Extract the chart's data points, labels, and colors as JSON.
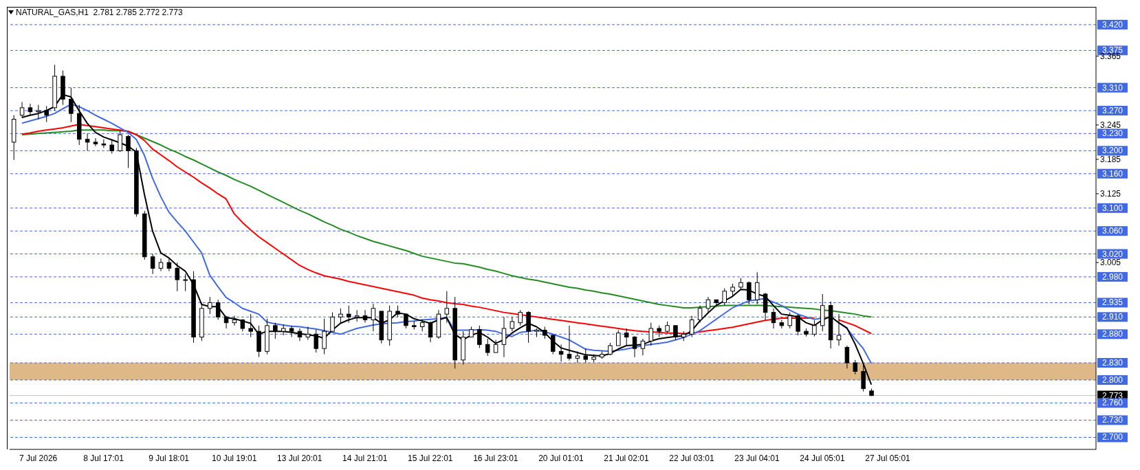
{
  "chart_data": {
    "type": "candlestick",
    "title": "NATURAL_GAS,H1  2.781 2.785 2.772 2.773",
    "categories": [
      null,
      null,
      null,
      "7 Jul 2026",
      null,
      null,
      null,
      null,
      null,
      null,
      null,
      "8 Jul 17:01",
      null,
      null,
      null,
      null,
      null,
      null,
      null,
      "9 Jul 18:01",
      null,
      null,
      null,
      null,
      null,
      null,
      null,
      "10 Jul 19:01",
      null,
      null,
      null,
      null,
      null,
      null,
      null,
      "13 Jul 20:01",
      null,
      null,
      null,
      null,
      null,
      null,
      null,
      "14 Jul 21:01",
      null,
      null,
      null,
      null,
      null,
      null,
      null,
      "15 Jul 22:01",
      null,
      null,
      null,
      null,
      null,
      null,
      null,
      "16 Jul 23:01",
      null,
      null,
      null,
      null,
      null,
      null,
      null,
      "20 Jul 01:01",
      null,
      null,
      null,
      null,
      null,
      null,
      null,
      "21 Jul 02:01",
      null,
      null,
      null,
      null,
      null,
      null,
      null,
      "22 Jul 03:01",
      null,
      null,
      null,
      null,
      null,
      null,
      null,
      "23 Jul 04:01",
      null,
      null,
      null,
      null,
      null,
      null,
      null,
      "24 Jul 05:01",
      null,
      null,
      null,
      null,
      null,
      null,
      null,
      "27 Jul 05:01",
      null,
      null,
      null,
      null,
      null,
      null,
      null,
      null,
      null,
      null,
      null,
      null,
      null,
      null,
      null,
      null,
      null,
      null,
      null,
      null,
      null,
      null,
      null,
      null,
      null
    ],
    "ohlc": [
      [
        3.215,
        3.262,
        3.184,
        3.255
      ],
      [
        3.262,
        3.285,
        3.258,
        3.275
      ],
      [
        3.275,
        3.282,
        3.262,
        3.268
      ],
      [
        3.268,
        3.28,
        3.255,
        3.27
      ],
      [
        3.27,
        3.278,
        3.25,
        3.262
      ],
      [
        3.275,
        3.35,
        3.27,
        3.33
      ],
      [
        3.33,
        3.34,
        3.28,
        3.29
      ],
      [
        3.29,
        3.31,
        3.25,
        3.265
      ],
      [
        3.265,
        3.28,
        3.21,
        3.22
      ],
      [
        3.22,
        3.23,
        3.2,
        3.215
      ],
      [
        3.215,
        3.222,
        3.208,
        3.212
      ],
      [
        3.212,
        3.22,
        3.205,
        3.21
      ],
      [
        3.21,
        3.22,
        3.195,
        3.2
      ],
      [
        3.2,
        3.235,
        3.198,
        3.228
      ],
      [
        3.225,
        3.228,
        3.17,
        3.2
      ],
      [
        3.2,
        3.205,
        3.085,
        3.09
      ],
      [
        3.09,
        3.095,
        3.01,
        3.015
      ],
      [
        3.015,
        3.02,
        2.985,
        2.995
      ],
      [
        2.995,
        3.012,
        2.99,
        3.005
      ],
      [
        3.005,
        3.012,
        2.99,
        2.995
      ],
      [
        2.995,
        3.005,
        2.955,
        2.975
      ],
      [
        2.975,
        2.985,
        2.955,
        2.975
      ],
      [
        2.975,
        2.99,
        2.865,
        2.875
      ],
      [
        2.875,
        2.935,
        2.868,
        2.925
      ],
      [
        2.925,
        2.945,
        2.915,
        2.935
      ],
      [
        2.935,
        2.94,
        2.905,
        2.91
      ],
      [
        2.91,
        2.912,
        2.89,
        2.9
      ],
      [
        2.9,
        2.912,
        2.895,
        2.905
      ],
      [
        2.905,
        2.906,
        2.885,
        2.89
      ],
      [
        2.89,
        2.915,
        2.875,
        2.885
      ],
      [
        2.885,
        2.895,
        2.84,
        2.85
      ],
      [
        2.85,
        2.907,
        2.845,
        2.895
      ],
      [
        2.895,
        2.9,
        2.872,
        2.885
      ],
      [
        2.885,
        2.897,
        2.878,
        2.89
      ],
      [
        2.89,
        2.895,
        2.875,
        2.885
      ],
      [
        2.885,
        2.89,
        2.868,
        2.875
      ],
      [
        2.875,
        2.893,
        2.87,
        2.88
      ],
      [
        2.88,
        2.888,
        2.848,
        2.855
      ],
      [
        2.855,
        2.907,
        2.845,
        2.885
      ],
      [
        2.885,
        2.918,
        2.885,
        2.91
      ],
      [
        2.91,
        2.925,
        2.9,
        2.915
      ],
      [
        2.915,
        2.93,
        2.9,
        2.91
      ],
      [
        2.91,
        2.922,
        2.902,
        2.912
      ],
      [
        2.912,
        2.922,
        2.9,
        2.905
      ],
      [
        2.905,
        2.933,
        2.885,
        2.925
      ],
      [
        2.92,
        2.92,
        2.864,
        2.87
      ],
      [
        2.87,
        2.93,
        2.86,
        2.92
      ],
      [
        2.92,
        2.93,
        2.91,
        2.915
      ],
      [
        2.915,
        2.915,
        2.89,
        2.895
      ],
      [
        2.895,
        2.903,
        2.888,
        2.893
      ],
      [
        2.893,
        2.906,
        2.885,
        2.9
      ],
      [
        2.9,
        2.902,
        2.866,
        2.875
      ],
      [
        2.875,
        2.922,
        2.872,
        2.915
      ],
      [
        2.915,
        2.955,
        2.9,
        2.925
      ],
      [
        2.925,
        2.945,
        2.82,
        2.835
      ],
      [
        2.835,
        2.885,
        2.827,
        2.875
      ],
      [
        2.875,
        2.893,
        2.875,
        2.888
      ],
      [
        2.888,
        2.895,
        2.856,
        2.862
      ],
      [
        2.862,
        2.872,
        2.842,
        2.848
      ],
      [
        2.848,
        2.87,
        2.848,
        2.862
      ],
      [
        2.862,
        2.91,
        2.84,
        2.89
      ],
      [
        2.89,
        2.91,
        2.885,
        2.902
      ],
      [
        2.9,
        2.922,
        2.895,
        2.918
      ],
      [
        2.918,
        2.92,
        2.865,
        2.885
      ],
      [
        2.885,
        2.89,
        2.875,
        2.887
      ],
      [
        2.887,
        2.893,
        2.872,
        2.878
      ],
      [
        2.878,
        2.88,
        2.845,
        2.85
      ],
      [
        2.85,
        2.862,
        2.832,
        2.845
      ],
      [
        2.845,
        2.895,
        2.834,
        2.838
      ],
      [
        2.838,
        2.85,
        2.83,
        2.842
      ],
      [
        2.842,
        2.855,
        2.83,
        2.836
      ],
      [
        2.836,
        2.845,
        2.831,
        2.84
      ],
      [
        2.84,
        2.85,
        2.837,
        2.845
      ],
      [
        2.845,
        2.865,
        2.843,
        2.86
      ],
      [
        2.86,
        2.887,
        2.86,
        2.882
      ],
      [
        2.882,
        2.89,
        2.86,
        2.875
      ],
      [
        2.875,
        2.877,
        2.84,
        2.855
      ],
      [
        2.855,
        2.872,
        2.843,
        2.868
      ],
      [
        2.868,
        2.9,
        2.86,
        2.89
      ],
      [
        2.89,
        2.895,
        2.875,
        2.885
      ],
      [
        2.885,
        2.902,
        2.882,
        2.895
      ],
      [
        2.895,
        2.895,
        2.87,
        2.875
      ],
      [
        2.875,
        2.885,
        2.868,
        2.88
      ],
      [
        2.88,
        2.912,
        2.875,
        2.905
      ],
      [
        2.905,
        2.93,
        2.9,
        2.925
      ],
      [
        2.925,
        2.945,
        2.918,
        2.94
      ],
      [
        2.94,
        2.94,
        2.928,
        2.935
      ],
      [
        2.935,
        2.96,
        2.93,
        2.955
      ],
      [
        2.955,
        2.968,
        2.945,
        2.962
      ],
      [
        2.962,
        2.978,
        2.957,
        2.97
      ],
      [
        2.97,
        2.972,
        2.932,
        2.94
      ],
      [
        2.94,
        2.988,
        2.932,
        2.97
      ],
      [
        2.95,
        2.952,
        2.905,
        2.918
      ],
      [
        2.918,
        2.925,
        2.89,
        2.9
      ],
      [
        2.9,
        2.905,
        2.89,
        2.895
      ],
      [
        2.895,
        2.918,
        2.89,
        2.912
      ],
      [
        2.912,
        2.915,
        2.878,
        2.885
      ],
      [
        2.885,
        2.89,
        2.876,
        2.88
      ],
      [
        2.88,
        2.904,
        2.876,
        2.895
      ],
      [
        2.895,
        2.95,
        2.885,
        2.93
      ],
      [
        2.93,
        2.937,
        2.855,
        2.87
      ],
      [
        2.87,
        2.915,
        2.86,
        2.878
      ],
      [
        2.857,
        2.86,
        2.82,
        2.83
      ],
      [
        2.83,
        2.835,
        2.81,
        2.815
      ],
      [
        2.815,
        2.83,
        2.78,
        2.785
      ],
      [
        2.781,
        2.785,
        2.772,
        2.773
      ],
      null,
      null,
      null,
      null,
      null,
      null,
      null,
      null,
      null,
      null,
      null,
      null,
      null,
      null,
      null,
      null,
      null,
      null,
      null,
      null,
      null,
      null,
      null,
      null,
      null,
      null,
      null
    ],
    "series": [
      {
        "type": "line",
        "color": "#228b22",
        "values": [
          null,
          3.228,
          3.229,
          3.23,
          3.231,
          3.232,
          3.233,
          3.234,
          3.236,
          3.236,
          3.236,
          3.236,
          3.235,
          3.235,
          3.234,
          3.228,
          3.222,
          3.216,
          3.21,
          3.203,
          3.197,
          3.19,
          3.184,
          3.177,
          3.17,
          3.163,
          3.157,
          3.15,
          3.144,
          3.138,
          3.131,
          3.124,
          3.117,
          3.11,
          3.103,
          3.096,
          3.09,
          3.083,
          3.076,
          3.07,
          3.063,
          3.058,
          3.052,
          3.047,
          3.042,
          3.038,
          3.034,
          3.03,
          3.026,
          3.021,
          3.016,
          3.013,
          3.01,
          3.007,
          3.004,
          3.003,
          3.0,
          2.997,
          2.993,
          2.99,
          2.986,
          2.982,
          2.979,
          2.976,
          2.974,
          2.971,
          2.968,
          2.965,
          2.962,
          2.96,
          2.957,
          2.955,
          2.952,
          2.95,
          2.947,
          2.944,
          2.941,
          2.938,
          2.935,
          2.932,
          2.93,
          2.928,
          2.926,
          2.926,
          2.927,
          2.928,
          2.929,
          2.93,
          2.93,
          2.93,
          2.93,
          2.93,
          2.93,
          2.929,
          2.928,
          2.927,
          2.926,
          2.925,
          2.924,
          2.922,
          2.921,
          2.919,
          2.917,
          2.915,
          2.912,
          2.91,
          null,
          null,
          null,
          null,
          null,
          null,
          null,
          null,
          null,
          null,
          null,
          null,
          null,
          null,
          null,
          null,
          null,
          null,
          null,
          null,
          null,
          null,
          null,
          null,
          null,
          null,
          null
        ]
      },
      {
        "type": "line",
        "color": "#ff0000",
        "values": [
          null,
          3.229,
          3.231,
          3.234,
          3.236,
          3.238,
          3.24,
          3.243,
          3.246,
          3.244,
          3.242,
          3.24,
          3.238,
          3.236,
          3.234,
          3.228,
          3.218,
          3.203,
          3.193,
          3.183,
          3.172,
          3.163,
          3.154,
          3.144,
          3.135,
          3.125,
          3.116,
          3.09,
          3.075,
          3.062,
          3.05,
          3.04,
          3.03,
          3.02,
          3.01,
          3.0,
          2.993,
          2.987,
          2.982,
          2.979,
          2.976,
          2.972,
          2.969,
          2.966,
          2.963,
          2.96,
          2.957,
          2.954,
          2.951,
          2.948,
          2.943,
          2.94,
          2.938,
          2.935,
          2.933,
          2.932,
          2.929,
          2.927,
          2.924,
          2.921,
          2.918,
          2.916,
          2.914,
          2.912,
          2.91,
          2.908,
          2.906,
          2.904,
          2.902,
          2.9,
          2.898,
          2.896,
          2.894,
          2.892,
          2.89,
          2.888,
          2.886,
          2.885,
          2.884,
          2.883,
          2.882,
          2.882,
          2.881,
          2.882,
          2.884,
          2.886,
          2.888,
          2.89,
          2.892,
          2.895,
          2.898,
          2.901,
          2.904,
          2.906,
          2.908,
          2.908,
          2.908,
          2.908,
          2.908,
          null,
          null,
          2.905,
          2.9,
          2.895,
          2.888,
          2.881,
          null,
          null,
          null,
          null,
          null,
          null,
          null,
          null,
          null,
          null,
          null,
          null,
          null,
          null,
          null,
          null,
          null,
          null,
          null,
          null,
          null,
          null,
          null,
          null,
          null,
          null,
          null
        ]
      },
      {
        "type": "line",
        "color": "#4169e1",
        "values": [
          null,
          3.248,
          3.252,
          3.256,
          3.26,
          3.265,
          3.273,
          3.281,
          3.277,
          3.27,
          3.262,
          3.255,
          3.248,
          3.24,
          3.232,
          3.22,
          3.192,
          3.152,
          3.12,
          3.093,
          3.076,
          3.06,
          3.041,
          3.022,
          2.983,
          2.963,
          2.944,
          2.935,
          2.925,
          2.92,
          2.915,
          2.901,
          2.898,
          2.896,
          2.894,
          2.893,
          2.891,
          2.889,
          2.886,
          2.883,
          2.88,
          2.885,
          2.89,
          2.893,
          2.896,
          2.898,
          2.899,
          2.9,
          2.902,
          2.903,
          2.905,
          2.906,
          2.907,
          2.909,
          2.887,
          2.887,
          2.887,
          2.888,
          2.887,
          2.885,
          2.88,
          2.876,
          2.883,
          2.885,
          2.887,
          2.884,
          2.88,
          2.875,
          2.87,
          2.862,
          2.854,
          2.852,
          2.851,
          2.85,
          2.852,
          2.854,
          2.857,
          2.86,
          2.862,
          2.864,
          2.866,
          2.87,
          2.874,
          2.88,
          2.886,
          2.896,
          2.906,
          2.916,
          2.926,
          2.932,
          2.938,
          2.94,
          2.942,
          2.936,
          2.93,
          2.922,
          2.915,
          2.91,
          2.906,
          2.908,
          null,
          2.9,
          2.89,
          2.872,
          2.855,
          2.829,
          null,
          null,
          null,
          null,
          null,
          null,
          null,
          null,
          null,
          null,
          null,
          null,
          null,
          null,
          null,
          null,
          null,
          null,
          null,
          null,
          null,
          null,
          null,
          null,
          null,
          null,
          null
        ]
      },
      {
        "type": "line",
        "color": "#000000",
        "values": [
          null,
          3.258,
          3.262,
          3.265,
          3.27,
          3.277,
          3.298,
          3.294,
          3.27,
          3.248,
          3.232,
          3.224,
          3.219,
          3.214,
          3.208,
          3.198,
          3.124,
          3.06,
          3.022,
          3.013,
          3.0,
          2.99,
          2.967,
          2.932,
          2.928,
          2.928,
          2.909,
          2.907,
          2.903,
          2.899,
          2.88,
          2.885,
          2.885,
          2.885,
          2.883,
          2.881,
          2.879,
          2.877,
          2.873,
          2.887,
          2.899,
          2.905,
          2.909,
          2.909,
          2.909,
          2.899,
          2.905,
          2.917,
          2.915,
          2.907,
          2.903,
          2.899,
          2.905,
          2.909,
          2.88,
          2.87,
          2.878,
          2.883,
          2.875,
          2.864,
          2.87,
          2.882,
          2.891,
          2.899,
          2.893,
          2.883,
          2.868,
          2.856,
          2.852,
          2.848,
          2.844,
          2.843,
          2.842,
          2.846,
          2.854,
          2.86,
          2.861,
          2.862,
          2.868,
          2.872,
          2.874,
          2.876,
          2.877,
          2.886,
          2.903,
          2.917,
          2.93,
          2.938,
          2.946,
          2.958,
          2.957,
          2.95,
          2.946,
          2.93,
          2.915,
          2.913,
          2.91,
          2.9,
          2.895,
          2.905,
          2.911,
          2.9,
          2.891,
          2.863,
          2.829,
          2.792,
          null,
          null,
          null,
          null,
          null,
          null,
          null,
          null,
          null,
          null,
          null,
          null,
          null,
          null,
          null,
          null,
          null,
          null,
          null,
          null,
          null,
          null,
          null,
          null,
          null,
          null,
          null
        ]
      }
    ],
    "ylim": [
      2.679,
      3.451
    ],
    "yticks": [
      3.365,
      3.245,
      3.185,
      3.125,
      3.005
    ],
    "ref_lines": [
      {
        "axis": "y",
        "value": 3.42,
        "label": "3.420",
        "color": "#4169e1",
        "line_style": "dashed"
      },
      {
        "axis": "y",
        "value": 3.375,
        "label": "3.375",
        "color": "#4169e1",
        "line_style": "dashed"
      },
      {
        "axis": "y",
        "value": 3.31,
        "label": "3.310",
        "color": "#4169e1",
        "line_style": "dashed"
      },
      {
        "axis": "y",
        "value": 3.27,
        "label": "3.270",
        "color": "#4169e1",
        "line_style": "dashed"
      },
      {
        "axis": "y",
        "value": 3.23,
        "label": "3.230",
        "color": "#4169e1",
        "line_style": "dashed"
      },
      {
        "axis": "y",
        "value": 3.2,
        "label": "3.200",
        "color": "#4169e1",
        "line_style": "dashed"
      },
      {
        "axis": "y",
        "value": 3.16,
        "label": "3.160",
        "color": "#4169e1",
        "line_style": "dashed"
      },
      {
        "axis": "y",
        "value": 3.1,
        "label": "3.100",
        "color": "#4169e1",
        "line_style": "dashed"
      },
      {
        "axis": "y",
        "value": 3.06,
        "label": "3.060",
        "color": "#4169e1",
        "line_style": "dashed"
      },
      {
        "axis": "y",
        "value": 3.02,
        "label": "3.020",
        "color": "#4169e1",
        "line_style": "dashed"
      },
      {
        "axis": "y",
        "value": 2.98,
        "label": "2.980",
        "color": "#4169e1",
        "line_style": "dashed"
      },
      {
        "axis": "y",
        "value": 2.935,
        "label": "2.935",
        "color": "#4169e1",
        "line_style": "dashed"
      },
      {
        "axis": "y",
        "value": 2.91,
        "label": "2.910",
        "color": "#4169e1",
        "line_style": "dashed"
      },
      {
        "axis": "y",
        "value": 2.88,
        "label": "2.880",
        "color": "#4169e1",
        "line_style": "dashed"
      },
      {
        "axis": "y",
        "value": 2.83,
        "label": "2.830",
        "color": "#4169e1",
        "line_style": "dashed"
      },
      {
        "axis": "y",
        "value": 2.8,
        "label": "2.800",
        "color": "#4169e1",
        "line_style": "dashed"
      },
      {
        "axis": "y",
        "value": 2.773,
        "label": "2.773",
        "color": "#c0c0c0",
        "line_style": "solid"
      },
      {
        "axis": "y",
        "value": 2.76,
        "label": "2.760",
        "color": "#4169e1",
        "line_style": "dashed"
      },
      {
        "axis": "y",
        "value": 2.73,
        "label": "2.730",
        "color": "#4169e1",
        "line_style": "dashed"
      },
      {
        "axis": "y",
        "value": 2.7,
        "label": "2.700",
        "color": "#4169e1",
        "line_style": "dashed"
      }
    ],
    "bands": [
      {
        "axis": "y",
        "from": 2.8,
        "to": 2.83,
        "color": "#deb887"
      }
    ]
  }
}
